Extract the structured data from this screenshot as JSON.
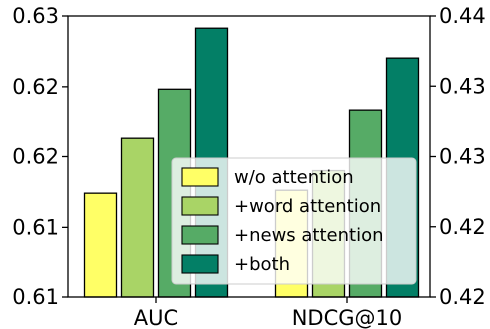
{
  "chart_data": {
    "type": "bar",
    "categories": [
      "AUC",
      "NDCG@10"
    ],
    "series": [
      {
        "name": "w/o attention",
        "color": "#ffff66",
        "values": [
          0.6155,
          0.4276
        ]
      },
      {
        "name": "+word attention",
        "color": "#a9d466",
        "values": [
          0.62,
          0.429
        ]
      },
      {
        "name": "+news attention",
        "color": "#56ab66",
        "values": [
          0.624,
          0.4333
        ]
      },
      {
        "name": "+both",
        "color": "#037f66",
        "values": [
          0.629,
          0.437
        ]
      }
    ],
    "left_axis": {
      "applies_to": "AUC",
      "ylim": [
        0.607,
        0.63
      ],
      "ticks": [
        0.607,
        0.6127,
        0.6185,
        0.6242,
        0.63
      ],
      "tick_labels": [
        "0.61",
        "0.61",
        "0.62",
        "0.62",
        "0.63"
      ]
    },
    "right_axis": {
      "applies_to": "NDCG@10",
      "ylim": [
        0.42,
        0.44
      ],
      "ticks": [
        0.42,
        0.425,
        0.43,
        0.435,
        0.44
      ],
      "tick_labels": [
        "0.42",
        "0.42",
        "0.43",
        "0.43",
        "0.44"
      ]
    },
    "legend_position": "lower-right",
    "grid": false
  }
}
